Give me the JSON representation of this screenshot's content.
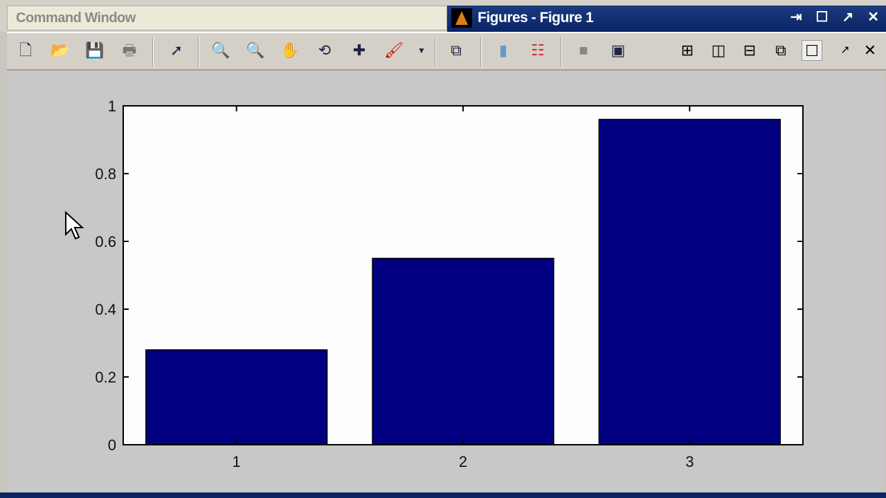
{
  "tabs": {
    "command_window": "Command Window",
    "figures": "Figures - Figure 1"
  },
  "window_buttons": [
    "dock-icon",
    "maximize-icon",
    "undock-icon",
    "close-icon"
  ],
  "toolbar": [
    "new-figure",
    "open-file",
    "save",
    "print",
    "edit-plot",
    "zoom-in",
    "zoom-out",
    "pan",
    "rotate-3d",
    "data-cursor",
    "brush",
    "brush-dropdown",
    "link-plot",
    "colorbar",
    "legend",
    "hide-plot-tools",
    "show-plot-tools",
    "tile-2x2",
    "tile-columns",
    "tile-rows",
    "float",
    "maximize",
    "undock",
    "close"
  ],
  "chart_data": {
    "type": "bar",
    "categories": [
      "1",
      "2",
      "3"
    ],
    "values": [
      0.28,
      0.55,
      0.96
    ],
    "xlim": [
      0.5,
      3.5
    ],
    "ylim": [
      0,
      1
    ],
    "yticks": [
      "0",
      "0.2",
      "0.4",
      "0.6",
      "0.8",
      "1"
    ],
    "grid": false,
    "bar_color": "#000080"
  }
}
